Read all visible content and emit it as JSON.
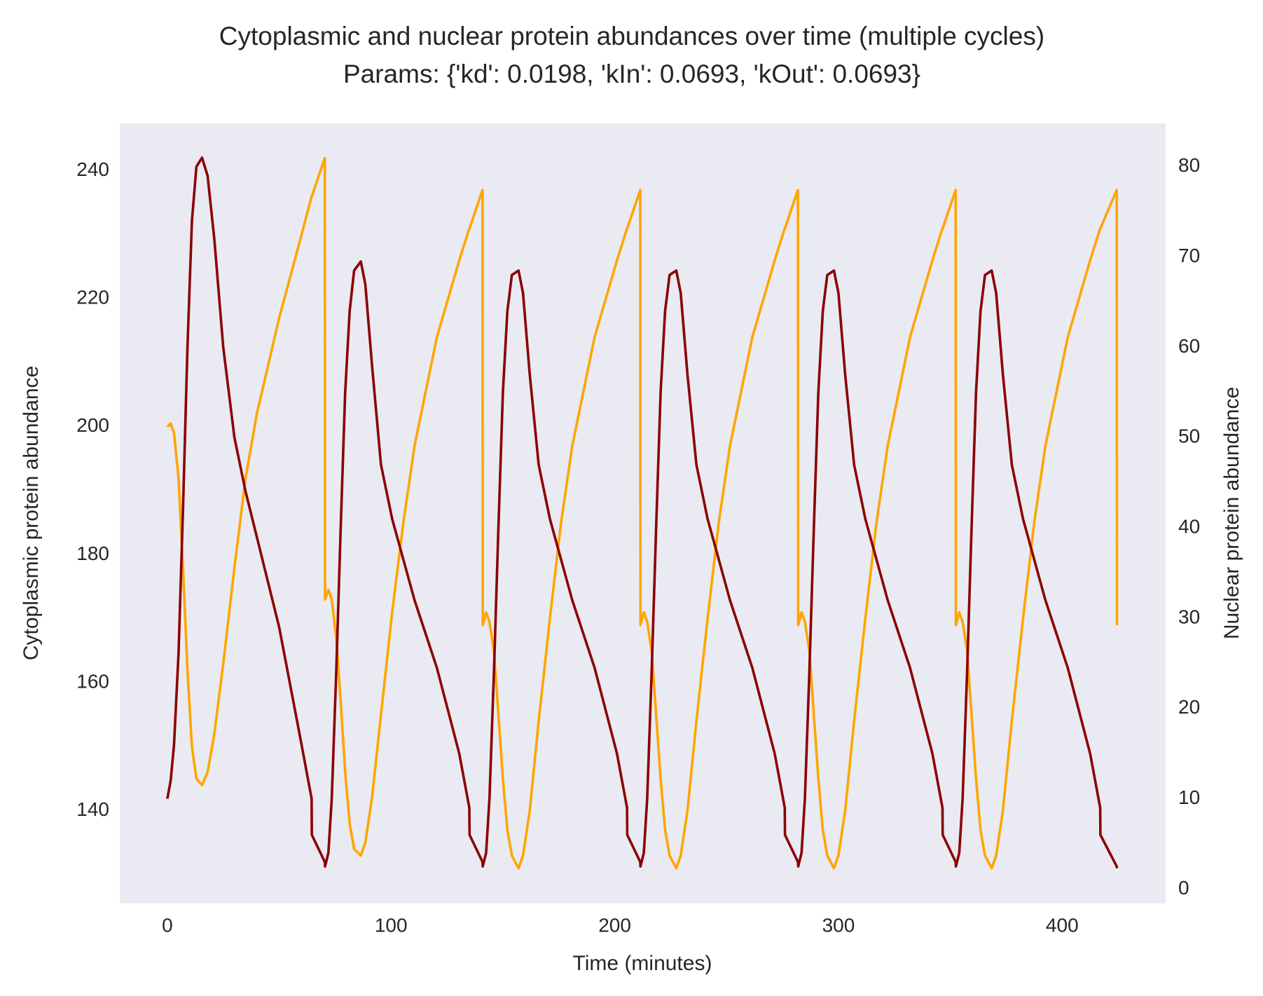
{
  "chart_data": {
    "type": "line",
    "title": "Cytoplasmic and nuclear protein abundances over time (multiple cycles)",
    "subtitle": "Params: {'kd': 0.0198, 'kIn': 0.0693, 'kOut': 0.0693}",
    "xlabel": "Time (minutes)",
    "ylabel": "Cytoplasmic protein abundance",
    "y2label": "Nuclear protein abundance",
    "grid": false,
    "xlim": [
      -21.25,
      446.25
    ],
    "ylim": [
      125.5,
      247.4
    ],
    "y2lim": [
      -1.6,
      84.8
    ],
    "xticks": [
      0,
      100,
      200,
      300,
      400
    ],
    "yticks": [
      140,
      160,
      180,
      200,
      220,
      240
    ],
    "y2ticks": [
      0,
      10,
      20,
      30,
      40,
      50,
      60,
      70,
      80
    ],
    "x": [
      0,
      1.5,
      3,
      5,
      7,
      9,
      11,
      13,
      15.5,
      18,
      21,
      25,
      30,
      35,
      40,
      50,
      60,
      64.5,
      64.6,
      70.4,
      70.5,
      72,
      73.5,
      75.5,
      77.5,
      79.5,
      81.5,
      83.5,
      86.5,
      88.5,
      91.5,
      95.5,
      100.5,
      105.5,
      110.5,
      120.5,
      130.5,
      135,
      135.1,
      140.9,
      141,
      142.5,
      144,
      146,
      148,
      150,
      152,
      154,
      157,
      159,
      162,
      166,
      171,
      176,
      181,
      191,
      201,
      205.5,
      205.6,
      211.4,
      211.5,
      213,
      214.5,
      216.5,
      218.5,
      220.5,
      222.5,
      224.5,
      227.5,
      229.5,
      232.5,
      236.5,
      241.5,
      246.5,
      251.5,
      261.5,
      271.5,
      276,
      276.1,
      281.9,
      282,
      283.5,
      285,
      287,
      289,
      291,
      293,
      295,
      298,
      300,
      303,
      307,
      312,
      317,
      322,
      332,
      342,
      346.5,
      346.6,
      352.4,
      352.5,
      354,
      355.5,
      357.5,
      359.5,
      361.5,
      363.5,
      365.5,
      368.5,
      370.5,
      373.5,
      377.5,
      382.5,
      387.5,
      392.5,
      402.5,
      412.5,
      417,
      417.1,
      424.4,
      424.5
    ],
    "series": [
      {
        "color": "#ffa500",
        "axis": "y",
        "values": [
          200,
          200.5,
          199,
          192,
          178,
          162,
          150,
          145,
          144,
          146,
          152,
          163,
          178,
          192,
          202,
          217,
          230,
          236,
          236,
          242,
          173,
          174.5,
          173,
          167,
          157,
          146,
          138,
          134,
          133,
          135,
          142,
          155,
          171,
          185,
          197,
          214,
          226,
          231,
          231,
          237,
          169,
          171,
          169.5,
          165,
          155,
          145,
          137,
          133,
          131,
          133,
          140,
          154,
          170,
          185,
          197,
          214,
          226,
          231,
          231,
          237,
          169,
          171,
          169.5,
          165,
          155,
          145,
          137,
          133,
          131,
          133,
          140,
          154,
          170,
          185,
          197,
          214,
          226,
          231,
          231,
          237,
          169,
          171,
          169.5,
          165,
          155,
          145,
          137,
          133,
          131,
          133,
          140,
          154,
          170,
          185,
          197,
          214,
          226,
          231,
          231,
          237,
          169,
          171,
          169.5,
          165,
          155,
          145,
          137,
          133,
          131,
          133,
          140,
          154,
          170,
          185,
          197,
          214,
          226,
          231,
          231,
          237,
          169
        ]
      },
      {
        "color": "#8b0000",
        "axis": "y2",
        "values": [
          10,
          12,
          16,
          26,
          42,
          60,
          74,
          80,
          81,
          79,
          72,
          60,
          50,
          44,
          39,
          29,
          16,
          10,
          6,
          3,
          2.5,
          4,
          10,
          24,
          40,
          55,
          64,
          68.5,
          69.5,
          67,
          58,
          47,
          41,
          36.5,
          32,
          24.5,
          15,
          9,
          6,
          3,
          2.5,
          4,
          10,
          24,
          40,
          55,
          64,
          68,
          68.5,
          66,
          57,
          47,
          41,
          36.5,
          32,
          24.5,
          15,
          9,
          6,
          3,
          2.5,
          4,
          10,
          24,
          40,
          55,
          64,
          68,
          68.5,
          66,
          57,
          47,
          41,
          36.5,
          32,
          24.5,
          15,
          9,
          6,
          3,
          2.5,
          4,
          10,
          24,
          40,
          55,
          64,
          68,
          68.5,
          66,
          57,
          47,
          41,
          36.5,
          32,
          24.5,
          15,
          9,
          6,
          3,
          2.5,
          4,
          10,
          24,
          40,
          55,
          64,
          68,
          68.5,
          66,
          57,
          47,
          41,
          36.5,
          32,
          24.5,
          15,
          9,
          6,
          2.5,
          2.3
        ]
      }
    ]
  }
}
